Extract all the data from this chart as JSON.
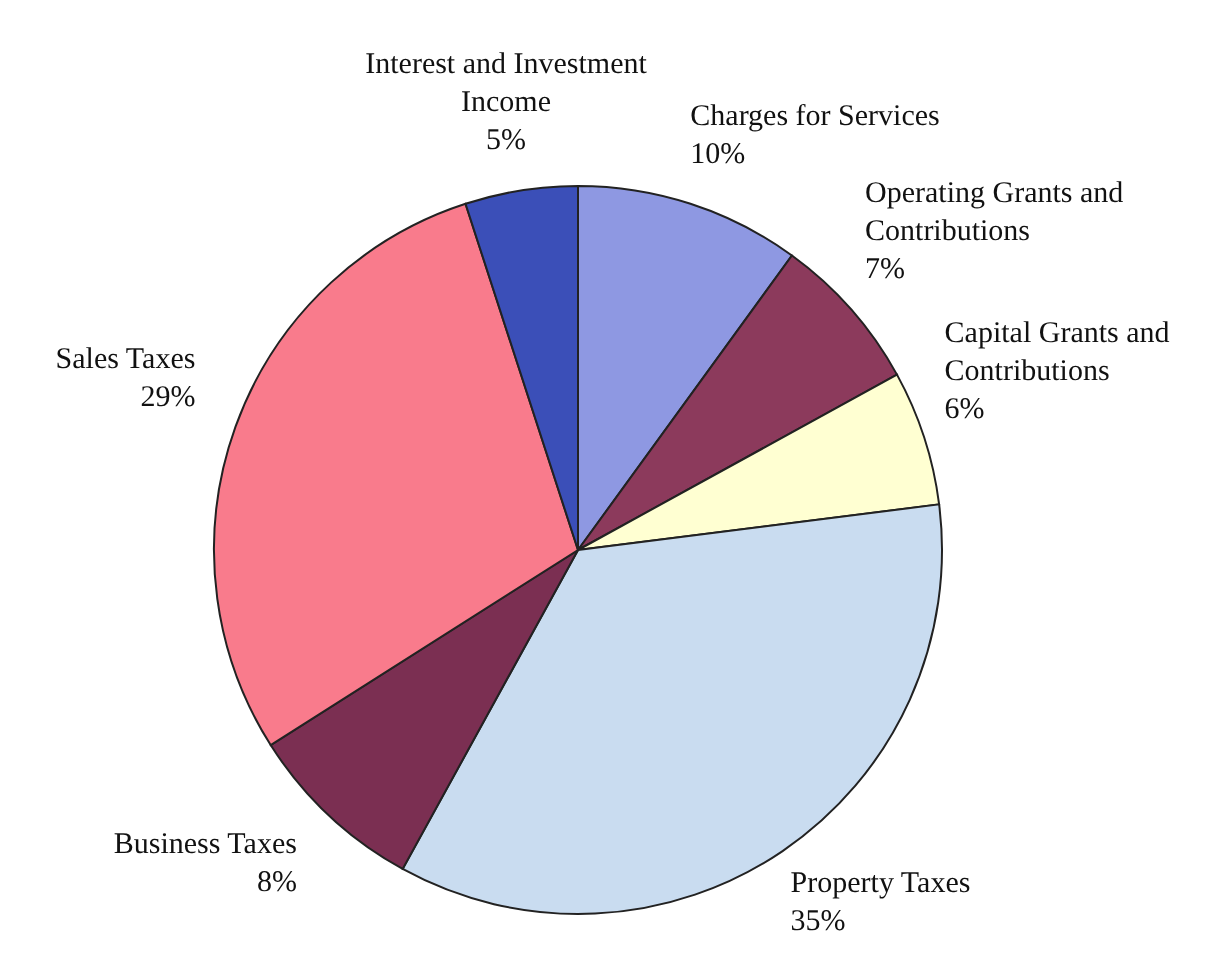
{
  "chart_data": {
    "type": "pie",
    "categories": [
      "Charges for Services",
      "Operating Grants and Contributions",
      "Capital Grants and Contributions",
      "Property Taxes",
      "Business Taxes",
      "Sales Taxes",
      "Interest and Investment Income"
    ],
    "values": [
      10,
      7,
      6,
      35,
      8,
      29,
      5
    ],
    "value_labels": [
      "10%",
      "7%",
      "6%",
      "35%",
      "8%",
      "29%",
      "5%"
    ],
    "colors": [
      "#8e98e2",
      "#8c3a5c",
      "#ffffd2",
      "#c9dcf0",
      "#7b2f52",
      "#f97b8c",
      "#3b4fb8"
    ],
    "legend": false
  }
}
